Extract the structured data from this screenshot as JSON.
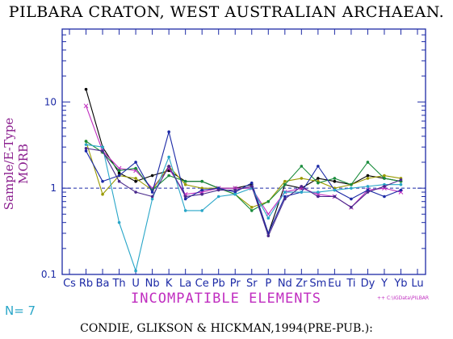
{
  "title": "PILBARA CRATON, WEST AUSTRALIAN ARCHAEAN.",
  "footer": "CONDIE, GLIKSON & HICKMAN,1994(PRE-PUB.):",
  "n_label": "N= 7",
  "file_label": "++ C:\\IGData\\PILBAR",
  "colors": {
    "axis": "#1c2aa6",
    "reference_line": "#1c2aa6",
    "ylabel": "#8b1f8f",
    "xlabel": "#c02ec0",
    "n_label": "#29a6c8"
  },
  "chart_data": {
    "type": "line",
    "title": "PILBARA CRATON, WEST AUSTRALIAN ARCHAEAN.",
    "xlabel": "INCOMPATIBLE ELEMENTS",
    "ylabel": "Sample/E-Type MORB",
    "y_scale": "log",
    "ylim": [
      0.1,
      70
    ],
    "y_ticks": [
      "10",
      "1",
      "0.1"
    ],
    "y_tick_values": [
      10,
      1,
      0.1
    ],
    "categories": [
      "Cs",
      "Rb",
      "Ba",
      "Th",
      "U",
      "Nb",
      "K",
      "La",
      "Ce",
      "Pb",
      "Pr",
      "Sr",
      "P",
      "Nd",
      "Zr",
      "Sm",
      "Eu",
      "Ti",
      "Dy",
      "Y",
      "Yb",
      "Lu"
    ],
    "reference_line": 1,
    "grid": false,
    "series": [
      {
        "color": "#000000",
        "marker": "dot",
        "values": [
          null,
          14,
          3,
          1.5,
          1.2,
          1.4,
          1.6,
          1.2,
          1.2,
          1.0,
          1.0,
          1.1,
          0.3,
          1.1,
          1.0,
          1.3,
          1.2,
          1.1,
          1.4,
          1.3,
          1.2,
          null
        ]
      },
      {
        "color": "#c02ec0",
        "marker": "x",
        "values": [
          null,
          9,
          2.7,
          1.7,
          1.6,
          1.0,
          1.7,
          0.85,
          0.9,
          1.0,
          1.0,
          1.0,
          0.5,
          0.9,
          1.0,
          0.85,
          0.8,
          0.6,
          0.95,
          1.0,
          0.9,
          null
        ]
      },
      {
        "color": "#9a9a00",
        "marker": "dot",
        "values": [
          null,
          3.5,
          0.85,
          1.4,
          1.3,
          0.95,
          1.8,
          1.1,
          1.0,
          1.0,
          0.85,
          0.6,
          0.7,
          1.2,
          1.3,
          1.2,
          1.0,
          1.1,
          1.3,
          1.4,
          1.3,
          null
        ]
      },
      {
        "color": "#1a8c3c",
        "marker": "dot",
        "values": [
          null,
          3.5,
          2.6,
          1.6,
          1.7,
          0.95,
          1.4,
          1.2,
          1.2,
          1.0,
          0.85,
          0.55,
          0.7,
          1.1,
          1.8,
          1.15,
          1.3,
          1.1,
          2.0,
          1.3,
          1.2,
          null
        ]
      },
      {
        "color": "#1c2aa6",
        "marker": "dot",
        "values": [
          null,
          2.7,
          1.2,
          1.4,
          2.0,
          0.9,
          4.5,
          0.75,
          0.95,
          1.0,
          0.9,
          1.15,
          0.3,
          0.8,
          0.9,
          1.8,
          0.95,
          0.75,
          0.95,
          0.8,
          0.95,
          null
        ]
      },
      {
        "color": "#29a6c8",
        "marker": "dot",
        "values": [
          null,
          3.2,
          3.0,
          0.4,
          0.11,
          0.75,
          2.3,
          0.55,
          0.55,
          0.8,
          0.85,
          1.0,
          0.45,
          0.9,
          0.9,
          0.9,
          0.95,
          1.0,
          1.05,
          1.1,
          1.1,
          null
        ]
      },
      {
        "color": "#4a2a8c",
        "marker": "dot",
        "values": [
          null,
          2.9,
          2.7,
          1.2,
          0.9,
          0.8,
          1.8,
          0.8,
          0.85,
          0.95,
          0.95,
          1.05,
          0.28,
          0.75,
          1.05,
          0.8,
          0.8,
          0.6,
          0.9,
          1.05,
          1.25,
          null
        ]
      }
    ]
  }
}
